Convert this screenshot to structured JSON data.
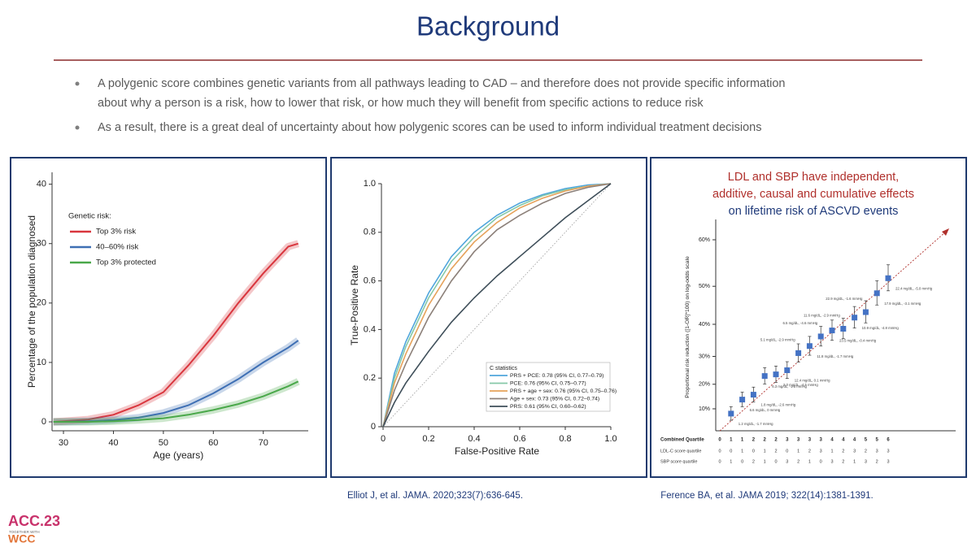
{
  "slide": {
    "title": "Background",
    "bullets": [
      {
        "lines": [
          "A polygenic score combines genetic variants from all pathways leading to CAD – and therefore does not provide specific information",
          "about why a person is a risk, how to lower that risk, or how much they will benefit from specific actions to reduce risk"
        ]
      },
      {
        "lines": [
          "As a result, there is a great deal of uncertainty about how polygenic scores can be used to inform individual treatment decisions"
        ]
      }
    ],
    "citations": [
      "Elliot J, et al. JAMA. 2020;323(7):636-645.",
      "Ference BA, et al.  JAMA 2019; 322(14):1381-1391."
    ],
    "logo": {
      "main": "ACC.23",
      "small": "TOGETHER WITH",
      "sub": "WCC"
    }
  },
  "chart_data": [
    {
      "type": "line",
      "bands": true,
      "xlabel": "Age (years)",
      "ylabel": "Percentage of the population diagnosed",
      "legend_title": "Genetic risk:",
      "x": [
        28,
        30,
        35,
        40,
        45,
        50,
        55,
        60,
        65,
        70,
        75,
        77
      ],
      "series": [
        {
          "name": "Top 3% risk",
          "color": "#d9363e",
          "values": [
            0,
            0.1,
            0.4,
            1.2,
            2.8,
            5,
            9.5,
            14.5,
            20,
            25,
            29.5,
            30
          ]
        },
        {
          "name": "40–60% risk",
          "color": "#3e6fb4",
          "values": [
            0,
            0,
            0.1,
            0.3,
            0.7,
            1.5,
            2.8,
            4.8,
            7.2,
            10,
            12.5,
            13.7
          ]
        },
        {
          "name": "Top 3% protected",
          "color": "#4aa84a",
          "values": [
            0,
            0,
            0,
            0.1,
            0.3,
            0.6,
            1.2,
            2,
            3,
            4.3,
            6,
            6.8
          ]
        }
      ],
      "xlim": [
        27,
        79
      ],
      "ylim": [
        -1.5,
        42
      ],
      "xticks": [
        30,
        40,
        50,
        60,
        70
      ],
      "yticks": [
        0,
        10,
        20,
        30,
        40
      ]
    },
    {
      "type": "line",
      "diagonal": true,
      "xlabel": "False-Positive Rate",
      "ylabel": "True-Positive Rate",
      "legend_title": "C statistics",
      "x": [
        0,
        0.05,
        0.1,
        0.2,
        0.3,
        0.4,
        0.5,
        0.6,
        0.7,
        0.8,
        0.9,
        1
      ],
      "series": [
        {
          "name": "PRS + PCE: 0.78 (95% CI, 0.77–0.79)",
          "color": "#4fa6dc",
          "values": [
            0,
            0.22,
            0.35,
            0.55,
            0.7,
            0.8,
            0.87,
            0.92,
            0.955,
            0.98,
            0.995,
            1
          ]
        },
        {
          "name": "PCE: 0.76 (95% CI, 0.75–0.77)",
          "color": "#86c9a8",
          "values": [
            0,
            0.2,
            0.33,
            0.53,
            0.68,
            0.78,
            0.86,
            0.91,
            0.95,
            0.975,
            0.99,
            1
          ]
        },
        {
          "name": "PRS + age + sex: 0.76 (95% CI, 0.75–0.76)",
          "color": "#e6a25a",
          "values": [
            0,
            0.18,
            0.3,
            0.5,
            0.65,
            0.76,
            0.84,
            0.9,
            0.94,
            0.97,
            0.99,
            1
          ]
        },
        {
          "name": "Age + sex: 0.73 (95% CI, 0.72–0.74)",
          "color": "#8c8079",
          "values": [
            0,
            0.15,
            0.26,
            0.45,
            0.6,
            0.72,
            0.81,
            0.87,
            0.92,
            0.96,
            0.985,
            1
          ]
        },
        {
          "name": "PRS: 0.61 (95% CI, 0.60–0.62)",
          "color": "#3e4e59",
          "values": [
            0,
            0.1,
            0.18,
            0.31,
            0.43,
            0.53,
            0.62,
            0.7,
            0.78,
            0.86,
            0.93,
            1
          ]
        }
      ],
      "xlim": [
        0,
        1
      ],
      "ylim": [
        0,
        1
      ],
      "xticks": [
        0,
        0.2,
        0.4,
        0.6,
        0.8,
        {
          "value": 1,
          "label": "1.0"
        }
      ],
      "yticks": [
        0,
        0.2,
        0.4,
        0.6,
        0.8,
        {
          "value": 1,
          "label": "1.0"
        }
      ]
    },
    {
      "type": "scatter",
      "title": [
        "LDL and SBP have independent,",
        "additive, causal and cumulative effects"
      ],
      "subtitle": "on lifetime risk of ASCVD events",
      "title_color": "#b0302c",
      "subtitle_color": "#1f3a7a",
      "ylabel": "Proportional risk reduction ([1-OR]*100) on log-odds scale",
      "yscale": "neg-log-complement",
      "color": "#4472c4",
      "x_label": "Combined Quartile",
      "categories": [
        "0",
        "1",
        "1",
        "2",
        "2",
        "2",
        "3",
        "3",
        "3",
        "3",
        "4",
        "4",
        "4",
        "5",
        "5",
        "6"
      ],
      "values": [
        null,
        7.9,
        13.9,
        15.9,
        23.1,
        23.7,
        25.2,
        31.1,
        33.4,
        36.4,
        38.2,
        38.7,
        41.9,
        43.4,
        48.3,
        51.9
      ],
      "errors": [
        null,
        3,
        3,
        3,
        3,
        3,
        3,
        3,
        3,
        3,
        3,
        3,
        3,
        3,
        3,
        3
      ],
      "point_labels": [
        null,
        "1.2 mg/dL, -1.7 mmHg",
        "6.6 mg/dL, 0 mmHg",
        "1.8 mg/dL, -2.6 mmHg",
        "6.3 mg/dL, -1.5 mmHg",
        "2.0 mg/dL, -4.5 mmHg",
        "12.4 mg/dL, 0.1 mmHg",
        "5.1 mg/dL, -2.9 mmHg",
        "11.8 mg/dL, -1.7 mmHg",
        "6.5 mg/dL, -4.6 mmHg",
        "23.5 mg/dL, -0.4 mmHg",
        "11.6 mg/dL, -2.9 mmHg",
        "10.9 mg/dL, -4.8 mmHg",
        "22.9 mg/dL, -1.6 mmHg",
        "17.9 mg/dL, -3.1 mmHg",
        "22.4 mg/dL, -5.0 mmHg"
      ],
      "table_rows": [
        {
          "label": "LDL-C score quartile",
          "values": [
            "0",
            "0",
            "1",
            "0",
            "1",
            "2",
            "0",
            "1",
            "2",
            "3",
            "1",
            "2",
            "3",
            "2",
            "3",
            "3"
          ]
        },
        {
          "label": "SBP score quartile",
          "values": [
            "0",
            "1",
            "0",
            "2",
            "1",
            "0",
            "3",
            "2",
            "1",
            "0",
            "3",
            "2",
            "1",
            "3",
            "2",
            "3"
          ]
        }
      ],
      "ylim": [
        0,
        63
      ],
      "yticks": [
        {
          "value": 10,
          "label": "10%"
        },
        {
          "value": 20,
          "label": "20%"
        },
        {
          "value": 30,
          "label": "30%"
        },
        {
          "value": 40,
          "label": "40%"
        },
        {
          "value": 50,
          "label": "50%"
        },
        {
          "value": 60,
          "label": "60%"
        }
      ]
    }
  ]
}
